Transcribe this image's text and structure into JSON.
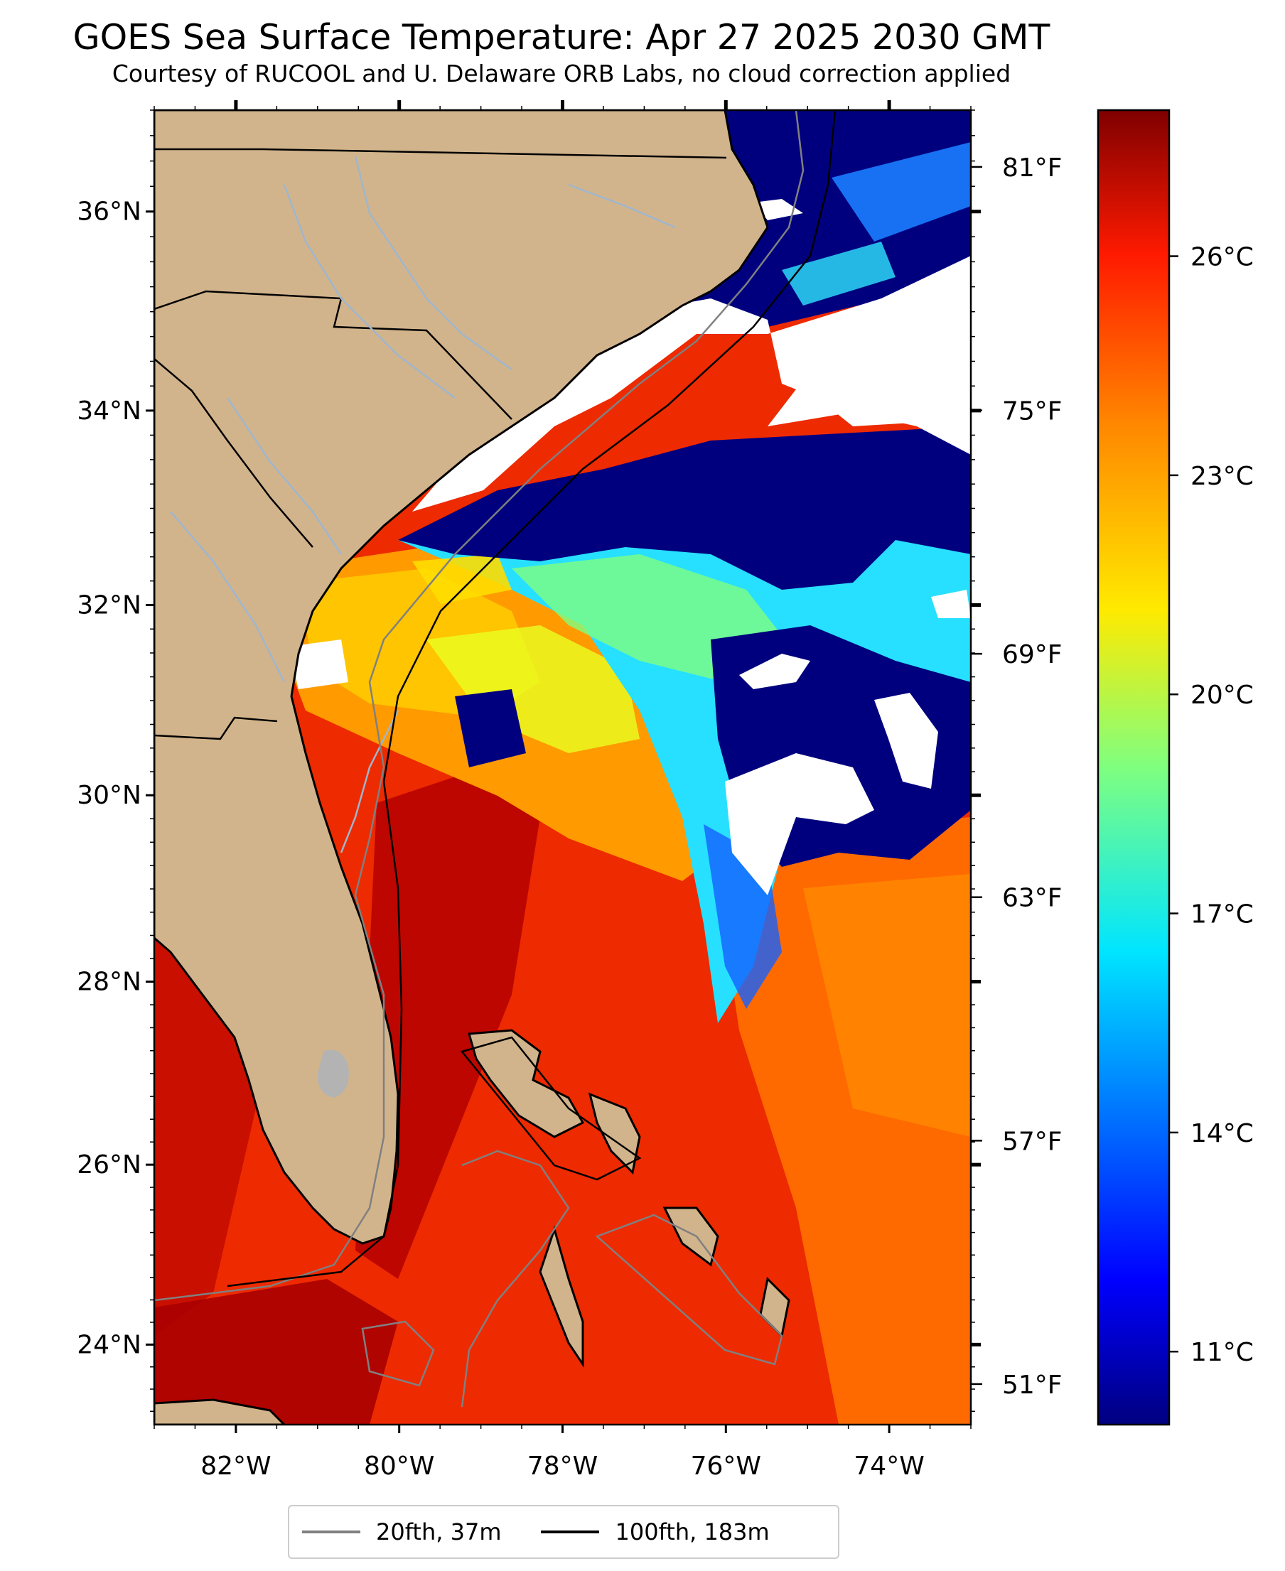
{
  "title": "GOES Sea Surface Temperature: Apr 27 2025 2030 GMT",
  "subtitle": "Courtesy of RUCOOL and U. Delaware ORB Labs, no cloud correction applied",
  "map": {
    "lon_range": [
      -83,
      -73
    ],
    "lat_range": [
      23.1,
      37
    ],
    "lat_ticks": [
      {
        "lat": 36,
        "label": "36°N"
      },
      {
        "lat": 34,
        "label": "34°N"
      },
      {
        "lat": 32,
        "label": "32°N"
      },
      {
        "lat": 30,
        "label": "30°N"
      },
      {
        "lat": 28,
        "label": "28°N"
      },
      {
        "lat": 26,
        "label": "26°N"
      },
      {
        "lat": 24,
        "label": "24°N"
      }
    ],
    "lon_ticks": [
      {
        "lon": -82,
        "label": "82°W"
      },
      {
        "lon": -80,
        "label": "80°W"
      },
      {
        "lon": -78,
        "label": "78°W"
      },
      {
        "lon": -76,
        "label": "76°W"
      },
      {
        "lon": -74,
        "label": "74°W"
      }
    ],
    "fahrenheit_ticks": [
      {
        "f": 81,
        "label": "81°F"
      },
      {
        "f": 75,
        "label": "75°F"
      },
      {
        "f": 69,
        "label": "69°F"
      },
      {
        "f": 63,
        "label": "63°F"
      },
      {
        "f": 57,
        "label": "57°F"
      },
      {
        "f": 51,
        "label": "51°F"
      }
    ],
    "colors": {
      "land": "#d2b48c",
      "cloud": "#ffffff",
      "isobath_20": "#808080",
      "isobath_100": "#000000",
      "rivers": "#9fb6cd",
      "lake": "#b3b3b3"
    }
  },
  "colorbar": {
    "range_c": [
      10,
      28
    ],
    "ticks": [
      {
        "c": 11,
        "label": "11°C"
      },
      {
        "c": 14,
        "label": "14°C"
      },
      {
        "c": 17,
        "label": "17°C"
      },
      {
        "c": 20,
        "label": "20°C"
      },
      {
        "c": 23,
        "label": "23°C"
      },
      {
        "c": 26,
        "label": "26°C"
      }
    ],
    "colormap": "jet"
  },
  "legend": {
    "items": [
      {
        "label": "20fth, 37m",
        "color": "#808080"
      },
      {
        "label": "100fth, 183m",
        "color": "#000000"
      }
    ]
  }
}
